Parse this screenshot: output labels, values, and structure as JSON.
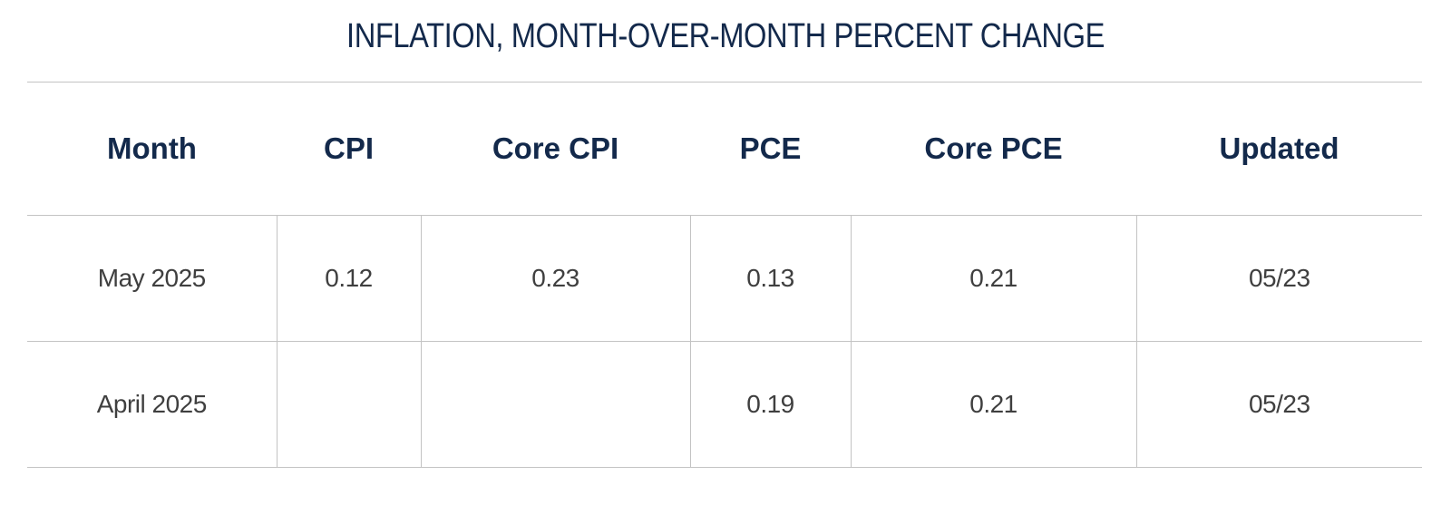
{
  "title": "INFLATION, MONTH-OVER-MONTH PERCENT CHANGE",
  "columns": [
    "Month",
    "CPI",
    "Core CPI",
    "PCE",
    "Core PCE",
    "Updated"
  ],
  "rows": [
    {
      "month": "May 2025",
      "cpi": "0.12",
      "core_cpi": "0.23",
      "pce": "0.13",
      "core_pce": "0.21",
      "updated": "05/23"
    },
    {
      "month": "April 2025",
      "cpi": "",
      "core_cpi": "",
      "pce": "0.19",
      "core_pce": "0.21",
      "updated": "05/23"
    }
  ],
  "colors": {
    "title": "#13294b",
    "header": "#13294b",
    "cell_text": "#3f3f3f",
    "border": "#c3c3c3"
  }
}
